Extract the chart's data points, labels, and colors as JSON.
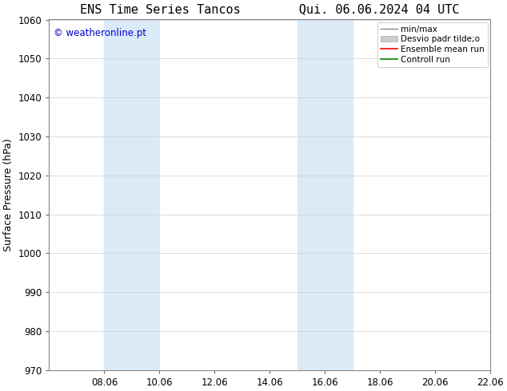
{
  "title_left": "ENS Time Series Tancos",
  "title_right": "Qui. 06.06.2024 04 UTC",
  "ylabel": "Surface Pressure (hPa)",
  "ylim": [
    970,
    1060
  ],
  "yticks": [
    970,
    980,
    990,
    1000,
    1010,
    1020,
    1030,
    1040,
    1050,
    1060
  ],
  "xlim": [
    0,
    16
  ],
  "xtick_labels": [
    "08.06",
    "10.06",
    "12.06",
    "14.06",
    "16.06",
    "18.06",
    "20.06",
    "22.06"
  ],
  "xtick_positions": [
    2,
    4,
    6,
    8,
    10,
    12,
    14,
    16
  ],
  "shaded_regions": [
    {
      "x_start": 2.0,
      "x_end": 4.0
    },
    {
      "x_start": 9.0,
      "x_end": 11.0
    }
  ],
  "shaded_color": "#daeaf7",
  "watermark_text": "© weatheronline.pt",
  "watermark_color": "#0000cc",
  "legend_entries": [
    "min/max",
    "Desvio padr tilde;o",
    "Ensemble mean run",
    "Controll run"
  ],
  "legend_colors": [
    "#888888",
    "#cccccc",
    "#ff0000",
    "#008000"
  ],
  "bg_color": "#ffffff",
  "plot_bg_color": "#ffffff",
  "grid_color": "#d0d0d0",
  "tick_label_fontsize": 8.5,
  "title_fontsize": 11,
  "ylabel_fontsize": 9,
  "watermark_fontsize": 8.5,
  "legend_fontsize": 7.5
}
